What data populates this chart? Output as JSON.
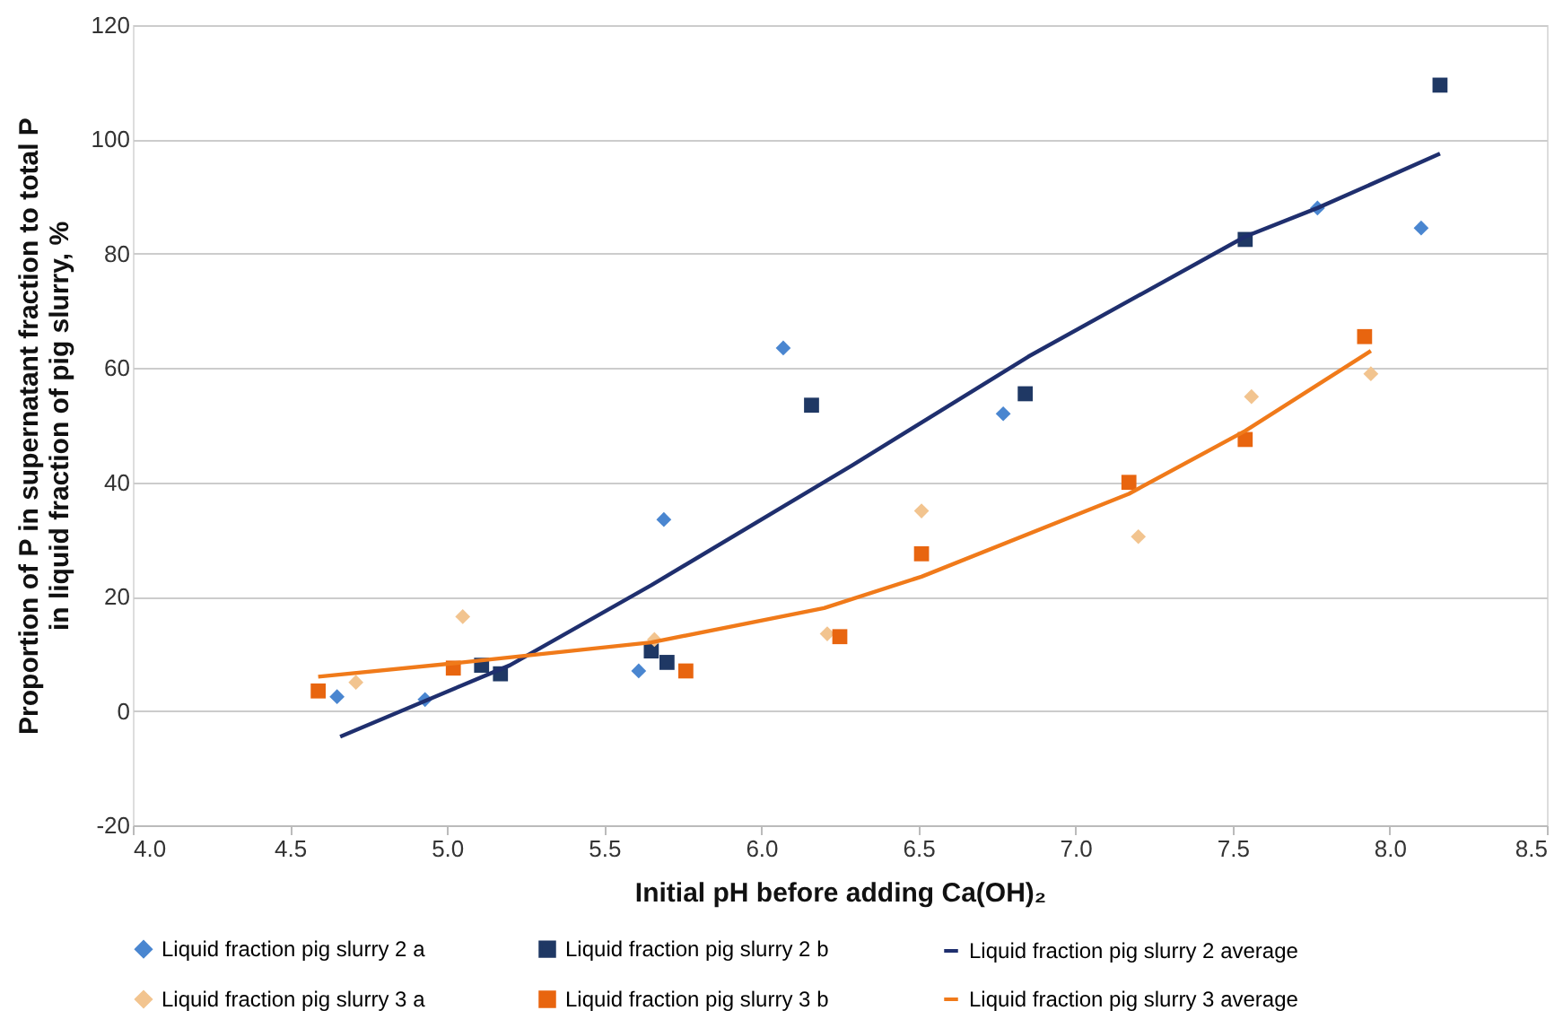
{
  "chart_data": {
    "type": "scatter",
    "xlabel": "Initial pH before adding Ca(OH)₂",
    "ylabel": "Proportion of P in supernatant  fraction to total P\nin liquid fraction of pig slurry, %",
    "xlim": [
      4.0,
      8.5
    ],
    "xticks": [
      {
        "value": 4.0,
        "label": "4.0"
      },
      {
        "value": 4.5,
        "label": "4.5"
      },
      {
        "value": 5.0,
        "label": "5.0"
      },
      {
        "value": 5.5,
        "label": "5.5"
      },
      {
        "value": 6.0,
        "label": "6.0"
      },
      {
        "value": 6.5,
        "label": "6.5"
      },
      {
        "value": 7.0,
        "label": "7.0"
      },
      {
        "value": 7.5,
        "label": "7.5"
      },
      {
        "value": 8.0,
        "label": "8.0"
      },
      {
        "value": 8.5,
        "label": "8.5"
      }
    ],
    "ylim": [
      -20,
      120
    ],
    "yticks": [
      -20,
      0,
      20,
      40,
      60,
      80,
      100,
      120
    ],
    "grid": "y",
    "legend": "bottom",
    "series": [
      {
        "name": "Liquid fraction pig slurry 2 a",
        "marker": "diamond",
        "color": "#4a86d0",
        "x": [
          4.65,
          4.93,
          5.61,
          5.69,
          6.07,
          6.77,
          7.77,
          8.1
        ],
        "values": [
          2.5,
          2,
          7,
          33.5,
          63.5,
          52,
          88,
          84.5
        ]
      },
      {
        "name": "Liquid fraction pig slurry 2 b",
        "marker": "square",
        "color": "#1f3864",
        "x": [
          5.11,
          5.17,
          5.65,
          5.7,
          6.16,
          6.84,
          7.54,
          8.16
        ],
        "values": [
          8,
          6.5,
          10.5,
          8.5,
          53.5,
          55.5,
          82.5,
          109.5
        ]
      },
      {
        "name": "Liquid fraction pig slurry 2 average",
        "type": "line",
        "marker": "none",
        "color": "#1f2f6e",
        "x": [
          4.66,
          5.2,
          5.65,
          6.29,
          6.85,
          7.54,
          7.77,
          8.16
        ],
        "values": [
          -4.5,
          8,
          22,
          43,
          62,
          83,
          88,
          97.5
        ]
      },
      {
        "name": "Liquid fraction pig slurry 3 a",
        "marker": "diamond",
        "color": "#f2c48f",
        "x": [
          4.71,
          5.05,
          5.66,
          6.21,
          6.51,
          7.2,
          7.56,
          7.94
        ],
        "values": [
          5,
          16.5,
          12.5,
          13.5,
          35,
          30.5,
          55,
          59
        ]
      },
      {
        "name": "Liquid fraction pig slurry 3 b",
        "marker": "square",
        "color": "#e8650f",
        "x": [
          4.59,
          5.02,
          5.76,
          6.25,
          6.51,
          7.17,
          7.54,
          7.92
        ],
        "values": [
          3.5,
          7.5,
          7,
          13,
          27.5,
          40,
          47.5,
          65.5
        ]
      },
      {
        "name": "Liquid fraction pig slurry 3 average",
        "type": "line",
        "marker": "none",
        "color": "#f07a1a",
        "x": [
          4.59,
          5.05,
          5.65,
          6.2,
          6.51,
          7.17,
          7.54,
          7.94
        ],
        "values": [
          6,
          8.5,
          12,
          18,
          23.5,
          38,
          49,
          63
        ]
      }
    ]
  }
}
